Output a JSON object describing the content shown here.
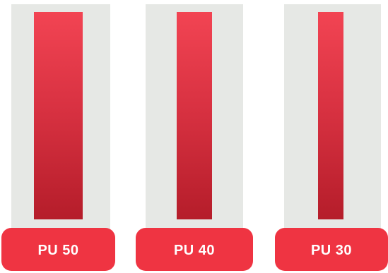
{
  "products": [
    {
      "label": "PU 50",
      "bar_color": "#d93242",
      "label_color": "#ef3442"
    },
    {
      "label": "PU 40",
      "bar_color": "#d93242",
      "label_color": "#ef3442"
    },
    {
      "label": "PU 30",
      "bar_color": "#d93242",
      "label_color": "#ef3442"
    }
  ],
  "colors": {
    "backdrop": "#e6e8e5",
    "bar_top": "#f24453",
    "bar_bottom": "#b51d2a",
    "label_text": "#ffffff"
  }
}
